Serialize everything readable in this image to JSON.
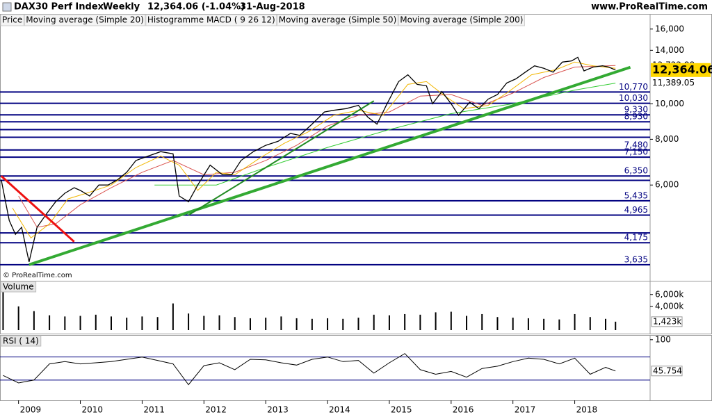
{
  "header": {
    "instrument": "DAX30 Perf Index",
    "period": "Weekly",
    "quote": "12,364.06 (-1.04%)",
    "date": "31-Aug-2018",
    "source": "www.ProRealTime.com"
  },
  "chart_data": [
    {
      "type": "line",
      "log": true,
      "watermark": "© ProRealTime.com",
      "indicator_label": "Histogramme MACD ( 9 26 12)",
      "xlim": [
        2008.7,
        2019.22
      ],
      "ylim": [
        3300,
        17600
      ],
      "yticks": [
        {
          "value": 16000,
          "label": "16,000"
        },
        {
          "value": 14000,
          "label": "14,000"
        },
        {
          "value": 10000,
          "label": "10,000"
        },
        {
          "value": 8000,
          "label": "8,000"
        },
        {
          "value": 6000,
          "label": "6,000"
        }
      ],
      "series": [
        {
          "name": "Price",
          "color": "#000000",
          "x": [
            2008.72,
            2008.85,
            2008.95,
            2009.05,
            2009.17,
            2009.3,
            2009.45,
            2009.6,
            2009.75,
            2009.9,
            2010.0,
            2010.15,
            2010.3,
            2010.45,
            2010.6,
            2010.75,
            2010.9,
            2011.1,
            2011.3,
            2011.5,
            2011.6,
            2011.75,
            2011.9,
            2012.1,
            2012.3,
            2012.45,
            2012.6,
            2012.8,
            2013.0,
            2013.2,
            2013.4,
            2013.55,
            2013.75,
            2013.95,
            2014.1,
            2014.3,
            2014.5,
            2014.65,
            2014.8,
            2014.95,
            2015.15,
            2015.3,
            2015.45,
            2015.6,
            2015.7,
            2015.85,
            2016.0,
            2016.12,
            2016.3,
            2016.45,
            2016.6,
            2016.75,
            2016.9,
            2017.05,
            2017.2,
            2017.35,
            2017.5,
            2017.65,
            2017.8,
            2017.95,
            2018.05,
            2018.15,
            2018.3,
            2018.45,
            2018.55,
            2018.66
          ],
          "values": [
            6200,
            4800,
            4400,
            4600,
            3700,
            4600,
            5000,
            5400,
            5700,
            5900,
            5800,
            5600,
            6000,
            6000,
            6200,
            6500,
            7000,
            7200,
            7400,
            7300,
            5600,
            5400,
            6000,
            6800,
            6400,
            6400,
            7000,
            7400,
            7700,
            7900,
            8300,
            8200,
            8800,
            9500,
            9600,
            9700,
            9900,
            9200,
            8800,
            9900,
            11500,
            12000,
            11300,
            11200,
            10000,
            10800,
            10000,
            9300,
            10100,
            9700,
            10300,
            10600,
            11400,
            11700,
            12200,
            12700,
            12500,
            12200,
            13000,
            13100,
            13400,
            12300,
            12600,
            12700,
            12600,
            12364.06
          ]
        },
        {
          "name": "Moving average (Simple 20)",
          "color": "#f2b600",
          "x": [
            2008.9,
            2009.2,
            2009.5,
            2009.8,
            2010.1,
            2010.5,
            2010.9,
            2011.3,
            2011.6,
            2011.9,
            2012.2,
            2012.5,
            2012.9,
            2013.3,
            2013.7,
            2014.1,
            2014.5,
            2014.9,
            2015.3,
            2015.6,
            2015.9,
            2016.2,
            2016.6,
            2016.9,
            2017.3,
            2017.7,
            2018.0,
            2018.3,
            2018.66
          ],
          "values": [
            5200,
            4300,
            4700,
            5500,
            5700,
            6000,
            6700,
            7200,
            6800,
            5800,
            6500,
            6400,
            7100,
            7800,
            8400,
            9300,
            9600,
            9300,
            11300,
            11500,
            10500,
            9700,
            9900,
            10700,
            12000,
            12400,
            13000,
            12700,
            12500
          ]
        },
        {
          "name": "Moving average (Simple 50)",
          "color": "#d9534f",
          "x": [
            2009.0,
            2009.3,
            2009.6,
            2010.0,
            2010.5,
            2011.0,
            2011.5,
            2012.0,
            2012.5,
            2013.0,
            2013.5,
            2014.0,
            2014.5,
            2015.0,
            2015.5,
            2016.0,
            2016.5,
            2017.0,
            2017.5,
            2018.0,
            2018.66
          ],
          "values": [
            5600,
            4600,
            4700,
            5300,
            5900,
            6500,
            7000,
            6400,
            6500,
            7000,
            7700,
            8700,
            9300,
            9500,
            10500,
            10600,
            9900,
            10700,
            11800,
            12600,
            12722.88
          ]
        },
        {
          "name": "Moving average (Simple 200)",
          "color": "#33cc33",
          "x": [
            2011.2,
            2012.2,
            2013.0,
            2014.0,
            2015.0,
            2016.0,
            2017.0,
            2018.0,
            2018.66
          ],
          "values": [
            6000,
            6000,
            6700,
            7600,
            8500,
            9400,
            10000,
            10900,
            11389.05
          ]
        }
      ],
      "levels": [
        {
          "value": 10770,
          "label": "10,770"
        },
        {
          "value": 10030,
          "label": "10,030"
        },
        {
          "value": 9330,
          "label": "9,330"
        },
        {
          "value": 8930,
          "label": "8,930"
        },
        8500,
        8100,
        {
          "value": 7480,
          "label": "7,480"
        },
        {
          "value": 7150,
          "label": "7,150"
        },
        {
          "value": 6350,
          "label": "6,350"
        },
        6180,
        {
          "value": 5435,
          "label": "5,435"
        },
        {
          "value": 4965,
          "label": "4,965"
        },
        4440,
        {
          "value": 4175,
          "label": "4,175"
        },
        {
          "value": 3635,
          "label": "3,635"
        }
      ],
      "level_color": "#000080",
      "trendlines": [
        {
          "color": "#33aa33",
          "points": [
            [
              2009.17,
              3635
            ],
            [
              2018.9,
              12585
            ]
          ]
        },
        {
          "color": "#228b22",
          "points": [
            [
              2011.75,
              4965
            ],
            [
              2014.75,
              10180
            ]
          ]
        },
        {
          "color": "#ee1111",
          "points": [
            [
              2008.72,
              6350
            ],
            [
              2009.9,
              4200
            ]
          ]
        }
      ],
      "price_tags": [
        {
          "value": 12722.88,
          "label": "12,722.88",
          "color": "#999999",
          "background": "#ffffff"
        },
        {
          "value": 12364.06,
          "label": "12,364.06",
          "color": "#000000",
          "background": "#ffd700"
        },
        {
          "value": 11389.05,
          "label": "11,389.05",
          "color": "#33cc33",
          "background": "#ffffff"
        }
      ]
    },
    {
      "type": "bar",
      "title": "Volume",
      "color": "#000000",
      "xlim": [
        2008.7,
        2019.22
      ],
      "ylim": [
        0,
        8200
      ],
      "yticks": [
        {
          "value": 6000,
          "label": "6,000k"
        },
        {
          "value": 4000,
          "label": "4,000k"
        }
      ],
      "x": [
        2008.75,
        2009.0,
        2009.25,
        2009.5,
        2009.75,
        2010.0,
        2010.25,
        2010.5,
        2010.75,
        2011.0,
        2011.25,
        2011.5,
        2011.75,
        2012.0,
        2012.25,
        2012.5,
        2012.75,
        2013.0,
        2013.25,
        2013.5,
        2013.75,
        2014.0,
        2014.25,
        2014.5,
        2014.75,
        2015.0,
        2015.25,
        2015.5,
        2015.75,
        2016.0,
        2016.25,
        2016.5,
        2016.75,
        2017.0,
        2017.25,
        2017.5,
        2017.75,
        2018.0,
        2018.25,
        2018.5,
        2018.66
      ],
      "values": [
        7500,
        4000,
        3200,
        2500,
        2300,
        2400,
        2600,
        2300,
        2100,
        2300,
        2200,
        4500,
        2800,
        2400,
        2500,
        2200,
        2000,
        2100,
        2300,
        2000,
        1900,
        2000,
        1900,
        2100,
        2600,
        2500,
        2700,
        2600,
        3000,
        3100,
        2400,
        2700,
        2200,
        2100,
        2000,
        1900,
        1800,
        2700,
        2200,
        1900,
        1423
      ],
      "last_tag": {
        "value": 1423,
        "label": "1,423k"
      }
    },
    {
      "type": "line",
      "title": "RSI ( 14)",
      "color": "#000000",
      "xlim": [
        2008.7,
        2019.22
      ],
      "xticks": [
        2009,
        2010,
        2011,
        2012,
        2013,
        2014,
        2015,
        2016,
        2017,
        2018
      ],
      "ylim": [
        -4,
        107
      ],
      "yticks": [
        100
      ],
      "hlines": [
        70,
        30
      ],
      "hline_color": "#000080",
      "x": [
        2008.75,
        2009.0,
        2009.25,
        2009.5,
        2009.75,
        2010.0,
        2010.25,
        2010.5,
        2010.75,
        2011.0,
        2011.25,
        2011.5,
        2011.75,
        2012.0,
        2012.25,
        2012.5,
        2012.75,
        2013.0,
        2013.25,
        2013.5,
        2013.75,
        2014.0,
        2014.25,
        2014.5,
        2014.75,
        2015.0,
        2015.25,
        2015.5,
        2015.75,
        2016.0,
        2016.25,
        2016.5,
        2016.75,
        2017.0,
        2017.25,
        2017.5,
        2017.75,
        2018.0,
        2018.25,
        2018.5,
        2018.66
      ],
      "values": [
        38,
        25,
        30,
        58,
        62,
        58,
        60,
        62,
        66,
        70,
        64,
        58,
        22,
        55,
        60,
        48,
        66,
        65,
        60,
        56,
        66,
        70,
        62,
        64,
        42,
        60,
        76,
        48,
        40,
        45,
        35,
        50,
        54,
        62,
        68,
        66,
        58,
        68,
        40,
        52,
        45.754
      ],
      "last_tag": {
        "value": 45.754,
        "label": "45.754"
      }
    }
  ]
}
